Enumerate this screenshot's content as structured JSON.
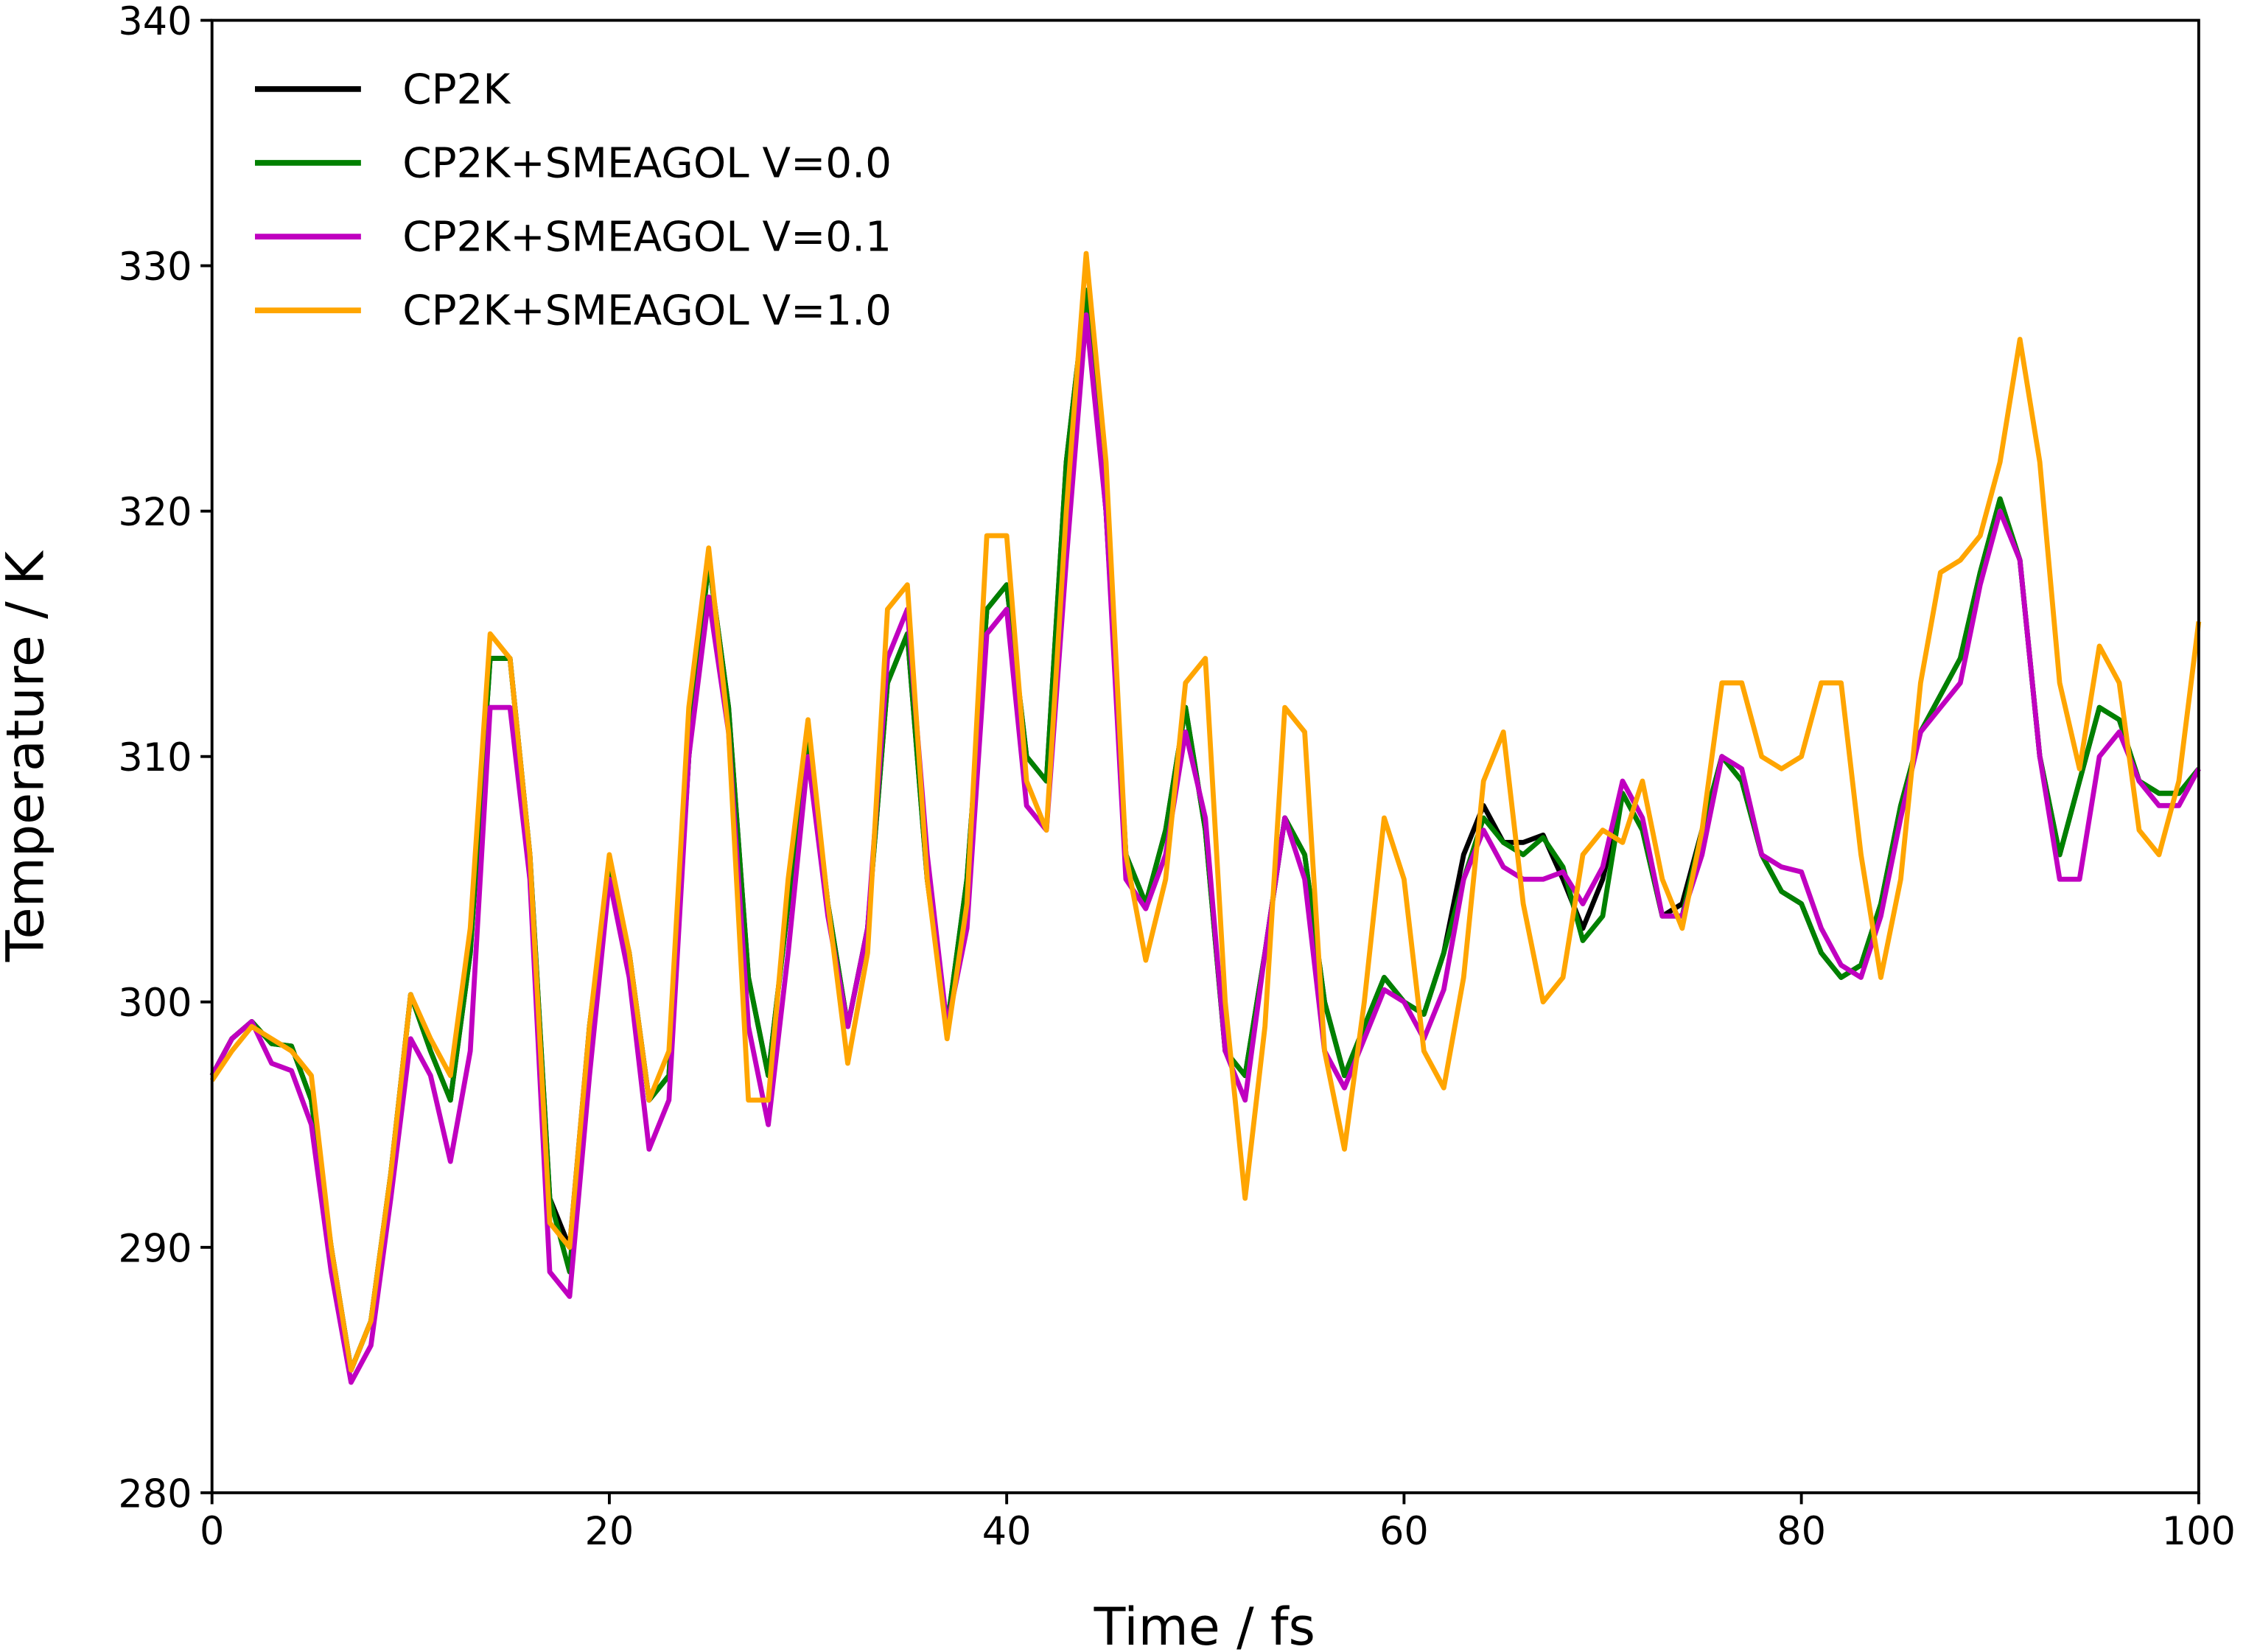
{
  "chart_data": {
    "type": "line",
    "xlabel": "Time / fs",
    "ylabel": "Temperature / K",
    "xlim": [
      0,
      100
    ],
    "ylim": [
      280,
      340
    ],
    "xticks": [
      0,
      20,
      40,
      60,
      80,
      100
    ],
    "yticks": [
      280,
      290,
      300,
      310,
      320,
      330,
      340
    ],
    "grid": false,
    "legend": "upper left",
    "x": [
      0,
      1,
      2,
      3,
      4,
      5,
      6,
      7,
      8,
      9,
      10,
      11,
      12,
      13,
      14,
      15,
      16,
      17,
      18,
      19,
      20,
      21,
      22,
      23,
      24,
      25,
      26,
      27,
      28,
      29,
      30,
      31,
      32,
      33,
      34,
      35,
      36,
      37,
      38,
      39,
      40,
      41,
      42,
      43,
      44,
      45,
      46,
      47,
      48,
      49,
      50,
      51,
      52,
      53,
      54,
      55,
      56,
      57,
      58,
      59,
      60,
      61,
      62,
      63,
      64,
      65,
      66,
      67,
      68,
      69,
      70,
      71,
      72,
      73,
      74,
      75,
      76,
      77,
      78,
      79,
      80,
      81,
      82,
      83,
      84,
      85,
      86,
      87,
      88,
      89,
      90,
      91,
      92,
      93,
      94,
      95,
      96,
      97,
      98,
      99,
      100
    ],
    "series": [
      {
        "name": "CP2K",
        "color": "#000000",
        "values": [
          297,
          298.5,
          299.2,
          298.3,
          298.2,
          296,
          290,
          285,
          287,
          293,
          300.3,
          298,
          296,
          302,
          314,
          314,
          306,
          292,
          290,
          299,
          305.5,
          302,
          296,
          297,
          310,
          318,
          312,
          301,
          297,
          304,
          311,
          304,
          299,
          303,
          313,
          315,
          305,
          299,
          305,
          316,
          317,
          310,
          309,
          322,
          329,
          320,
          306,
          304,
          307,
          312,
          307,
          298,
          297,
          302,
          307.5,
          306,
          300,
          297,
          299,
          301,
          300,
          299.5,
          302,
          306,
          308,
          306.5,
          306.5,
          306.8,
          305,
          303,
          305,
          308.5,
          307,
          303.5,
          304,
          307,
          310,
          309,
          306,
          304.5,
          304,
          302,
          301,
          301.5,
          304,
          308,
          311,
          312.5,
          314,
          317.5,
          320.5,
          318,
          310,
          306,
          309,
          312,
          311.5,
          309,
          308.5,
          308.5,
          309.5
        ]
      },
      {
        "name": "CP2K+SMEAGOL V=0.0",
        "color": "#008000",
        "values": [
          297,
          298.5,
          299.2,
          298.3,
          298.2,
          296,
          290,
          285,
          287,
          293,
          300.3,
          298,
          296,
          302,
          314,
          314,
          306,
          292,
          289,
          299,
          305.5,
          302,
          296,
          297,
          310,
          318,
          312,
          301,
          297,
          304,
          311,
          304,
          299,
          303,
          313,
          315,
          305,
          299,
          305,
          316,
          317,
          310,
          309,
          322,
          329,
          320,
          306,
          304,
          307,
          312,
          307,
          298,
          297,
          302,
          307.5,
          306,
          300,
          297,
          299,
          301,
          300,
          299.5,
          302,
          305,
          307.5,
          306.5,
          306,
          306.7,
          305.5,
          302.5,
          303.5,
          308.5,
          307,
          303.5,
          303.5,
          307,
          310,
          309,
          306,
          304.5,
          304,
          302,
          301,
          301.5,
          304,
          308,
          311,
          312.5,
          314,
          317.5,
          320.5,
          318,
          310,
          306,
          309,
          312,
          311.5,
          309,
          308.5,
          308.5,
          309.5
        ]
      },
      {
        "name": "CP2K+SMEAGOL V=0.1",
        "color": "#c000c0",
        "values": [
          297,
          298.5,
          299.2,
          297.5,
          297.2,
          295,
          289,
          284.5,
          286,
          292,
          298.5,
          297,
          293.5,
          298,
          312,
          312,
          305,
          289,
          288,
          297,
          305,
          301,
          294,
          296,
          310,
          316.5,
          311,
          299,
          295,
          302,
          310,
          303.5,
          299,
          303,
          314,
          316,
          306,
          299,
          303,
          315,
          316,
          308,
          307,
          318,
          328,
          320,
          305,
          303.8,
          306,
          311,
          307.5,
          298,
          296,
          302,
          307.5,
          305,
          298,
          296.5,
          298.5,
          300.5,
          300,
          298.5,
          300.5,
          305,
          307,
          305.5,
          305,
          305,
          305.3,
          304,
          305.5,
          309,
          307.5,
          303.5,
          303.5,
          306,
          310,
          309.5,
          306,
          305.5,
          305.3,
          303,
          301.5,
          301,
          303.5,
          307.5,
          311,
          312,
          313,
          317,
          320,
          318,
          310,
          305,
          305,
          310,
          311,
          309,
          308,
          308,
          309.5
        ]
      },
      {
        "name": "CP2K+SMEAGOL V=1.0",
        "color": "#ffa500",
        "values": [
          296.8,
          298,
          299,
          298.5,
          298,
          297,
          290,
          285,
          287,
          293,
          300.3,
          298.5,
          297,
          303,
          315,
          314,
          306,
          291,
          290,
          299,
          306,
          302,
          296,
          298,
          312,
          318.5,
          311,
          296,
          296,
          305,
          311.5,
          304,
          297.5,
          302,
          316,
          317,
          305,
          298.5,
          304,
          319,
          319,
          309,
          307,
          320,
          330.5,
          322,
          306,
          301.7,
          305,
          313,
          314,
          300,
          292,
          299,
          312,
          311,
          298,
          294,
          300,
          307.5,
          305,
          298,
          296.5,
          301,
          309,
          311,
          304,
          300,
          301,
          306,
          307,
          306.5,
          309,
          305,
          303,
          307,
          313,
          313,
          310,
          309.5,
          310,
          313,
          313,
          306,
          301,
          305,
          313,
          317.5,
          318,
          319,
          322,
          327,
          322,
          313,
          309.5,
          314.5,
          313,
          307,
          306,
          309,
          315.5
        ]
      }
    ]
  }
}
